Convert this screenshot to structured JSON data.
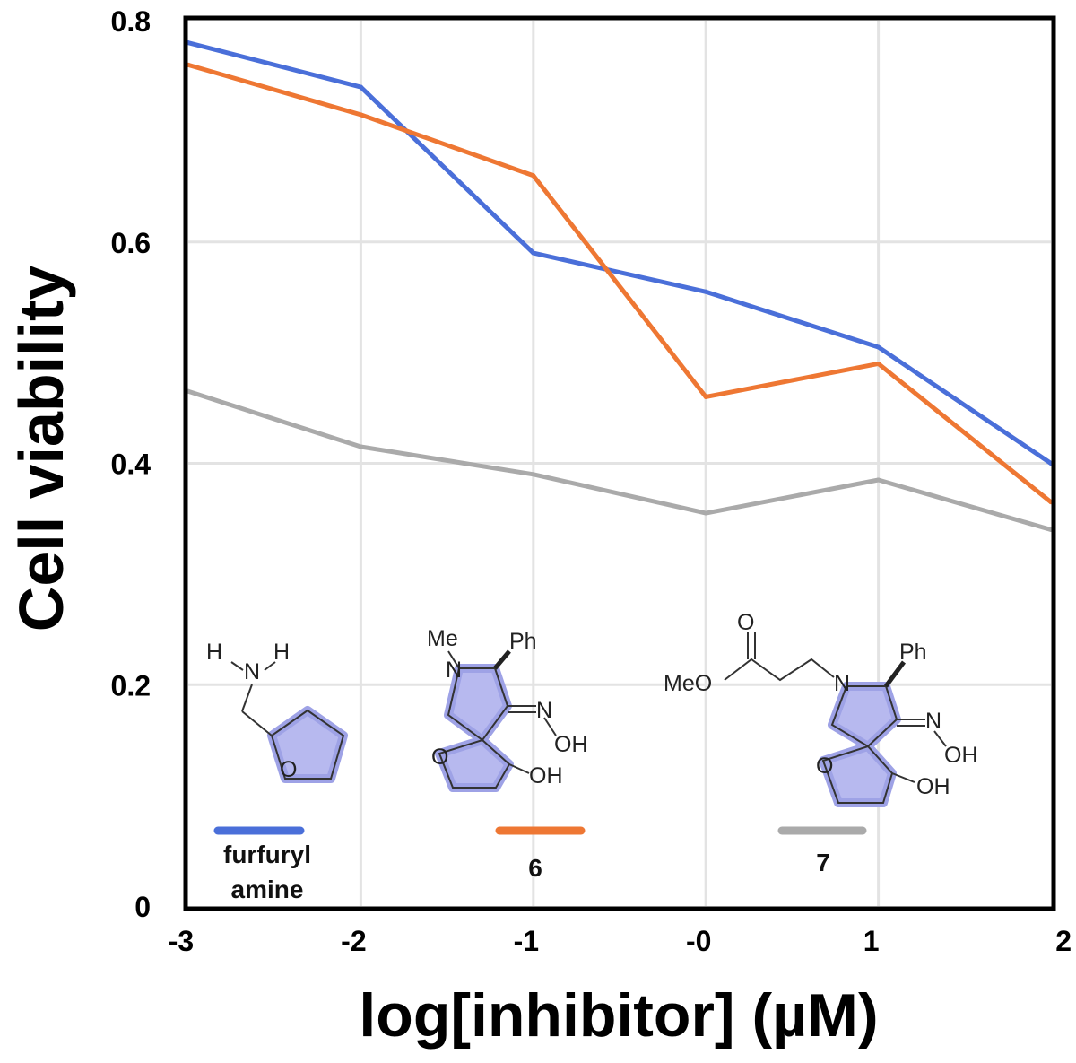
{
  "chart_data": {
    "type": "line",
    "xlabel": "log[inhibitor] (µM)",
    "ylabel": "Cell viability",
    "x": [
      -3,
      -2,
      -1,
      0,
      1,
      2
    ],
    "x_tick_labels": [
      "-3",
      "-2",
      "-1",
      "-0",
      "1",
      "2"
    ],
    "y_ticks": [
      0,
      0.2,
      0.4,
      0.6,
      0.8
    ],
    "y_tick_labels": [
      "0",
      "0.2",
      "0.4",
      "0.6",
      "0.8"
    ],
    "xlim": [
      -3,
      2
    ],
    "ylim": [
      0,
      0.8
    ],
    "grid": true,
    "legend_position": "bottom, inside plot",
    "series": [
      {
        "name": "furfuryl amine",
        "color": "#4a6fd9",
        "values": [
          0.78,
          0.74,
          0.59,
          0.555,
          0.505,
          0.4
        ]
      },
      {
        "name": "6",
        "color": "#ee7733",
        "values": [
          0.76,
          0.715,
          0.66,
          0.46,
          0.49,
          0.365
        ]
      },
      {
        "name": "7",
        "color": "#aaaaaa",
        "values": [
          0.465,
          0.415,
          0.39,
          0.355,
          0.385,
          0.34
        ]
      }
    ],
    "legend_labels": {
      "s0_line1": "furfuryl",
      "s0_line2": "amine",
      "s1": "6",
      "s2": "7"
    },
    "structure_labels": {
      "amine_h1": "H",
      "amine_n": "N",
      "amine_h2": "H",
      "ring_o": "O",
      "me": "Me",
      "n": "N",
      "ph": "Ph",
      "oxime_n": "N",
      "oh": "OH",
      "meo": "MeO",
      "carbonyl_o": "O"
    }
  }
}
